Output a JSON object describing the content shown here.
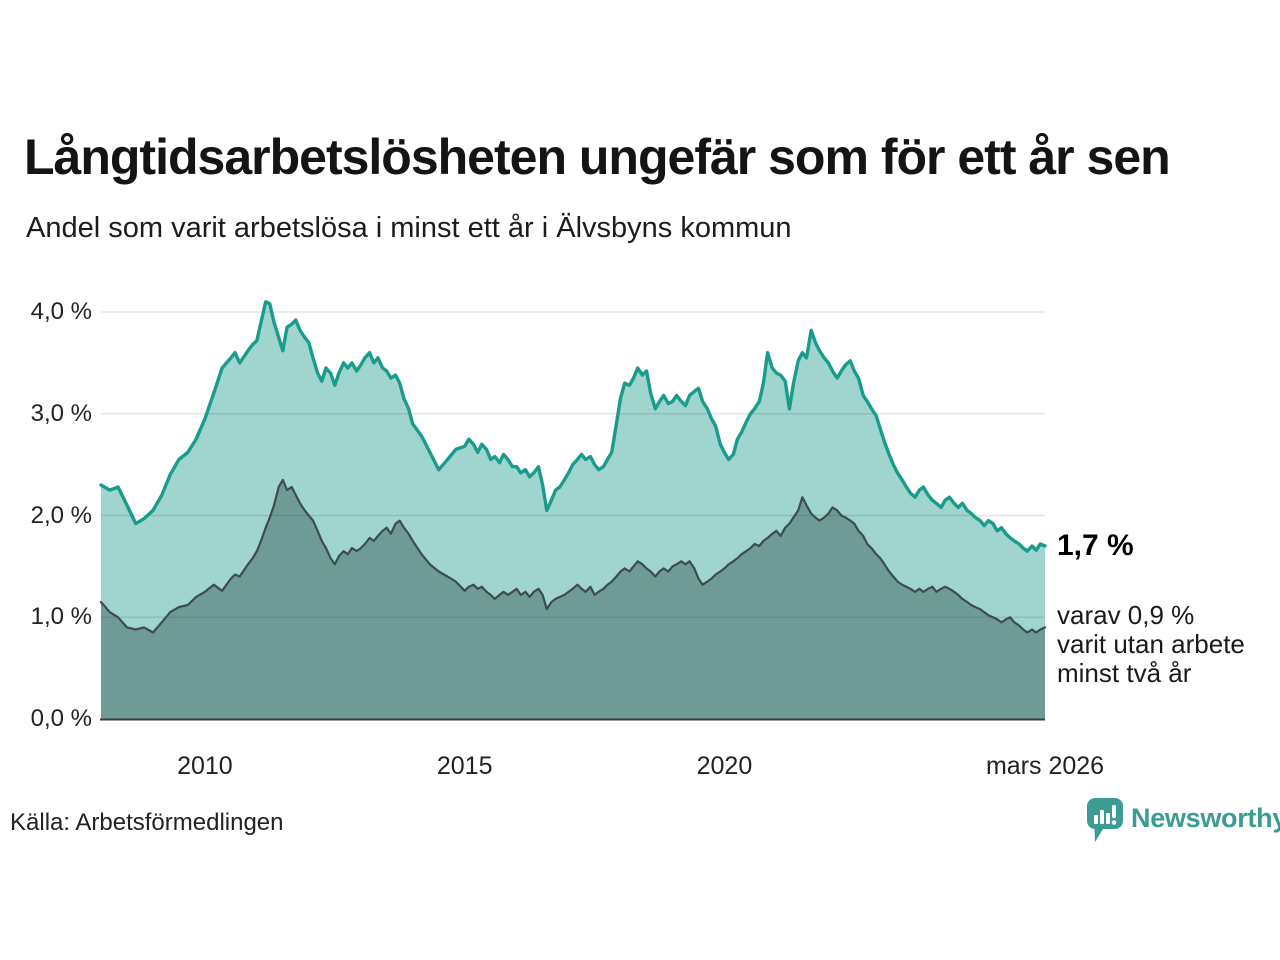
{
  "header": {
    "title": "Långtidsarbetslösheten ungefär som för ett år sen",
    "subtitle": "Andel som varit arbetslösa i minst ett år i Älvsbyns kommun"
  },
  "source": {
    "label": "Källa: Arbetsförmedlingen"
  },
  "branding": {
    "name": "Newsworthy",
    "color": "#3b9c93",
    "icon": "bar-chart-speech-bubble-icon"
  },
  "chart_data": {
    "type": "area",
    "title": "Långtidsarbetslösheten ungefär som för ett år sen",
    "subtitle": "Andel som varit arbetslösa i minst ett år i Älvsbyns kommun",
    "x_domain": [
      2008.0,
      2026.17
    ],
    "ylim": [
      0,
      4.3
    ],
    "grid": true,
    "y_ticks": [
      {
        "value": 0.0,
        "label": "0,0 %"
      },
      {
        "value": 1.0,
        "label": "1,0 %"
      },
      {
        "value": 2.0,
        "label": "2,0 %"
      },
      {
        "value": 3.0,
        "label": "3,0 %"
      },
      {
        "value": 4.0,
        "label": "4,0 %"
      }
    ],
    "x_ticks": [
      {
        "value": 2010,
        "label": "2010"
      },
      {
        "value": 2015,
        "label": "2015"
      },
      {
        "value": 2020,
        "label": "2020"
      },
      {
        "value": 2026.17,
        "label": "mars 2026"
      }
    ],
    "x": [
      2008.0,
      2008.17,
      2008.33,
      2008.5,
      2008.67,
      2008.83,
      2009.0,
      2009.17,
      2009.33,
      2009.5,
      2009.67,
      2009.83,
      2010.0,
      2010.17,
      2010.33,
      2010.5,
      2010.58,
      2010.67,
      2010.83,
      2010.92,
      2011.0,
      2011.08,
      2011.17,
      2011.25,
      2011.33,
      2011.42,
      2011.5,
      2011.58,
      2011.67,
      2011.75,
      2011.83,
      2011.92,
      2012.0,
      2012.08,
      2012.17,
      2012.25,
      2012.33,
      2012.42,
      2012.5,
      2012.58,
      2012.67,
      2012.75,
      2012.83,
      2012.92,
      2013.0,
      2013.08,
      2013.17,
      2013.25,
      2013.33,
      2013.42,
      2013.5,
      2013.58,
      2013.67,
      2013.75,
      2013.83,
      2013.92,
      2014.0,
      2014.17,
      2014.33,
      2014.5,
      2014.67,
      2014.83,
      2015.0,
      2015.08,
      2015.17,
      2015.25,
      2015.33,
      2015.42,
      2015.5,
      2015.58,
      2015.67,
      2015.75,
      2015.83,
      2015.92,
      2016.0,
      2016.08,
      2016.17,
      2016.25,
      2016.33,
      2016.42,
      2016.5,
      2016.58,
      2016.67,
      2016.75,
      2016.83,
      2016.92,
      2017.0,
      2017.08,
      2017.17,
      2017.25,
      2017.33,
      2017.42,
      2017.5,
      2017.58,
      2017.67,
      2017.75,
      2017.83,
      2017.92,
      2018.0,
      2018.08,
      2018.17,
      2018.25,
      2018.33,
      2018.42,
      2018.5,
      2018.58,
      2018.67,
      2018.75,
      2018.83,
      2018.92,
      2019.0,
      2019.08,
      2019.17,
      2019.25,
      2019.33,
      2019.42,
      2019.5,
      2019.58,
      2019.67,
      2019.75,
      2019.83,
      2019.92,
      2020.0,
      2020.08,
      2020.17,
      2020.25,
      2020.33,
      2020.42,
      2020.5,
      2020.58,
      2020.67,
      2020.75,
      2020.83,
      2020.92,
      2021.0,
      2021.08,
      2021.17,
      2021.25,
      2021.33,
      2021.42,
      2021.5,
      2021.58,
      2021.67,
      2021.75,
      2021.83,
      2021.92,
      2022.0,
      2022.08,
      2022.17,
      2022.25,
      2022.33,
      2022.42,
      2022.5,
      2022.58,
      2022.67,
      2022.75,
      2022.83,
      2022.92,
      2023.0,
      2023.08,
      2023.17,
      2023.25,
      2023.33,
      2023.42,
      2023.5,
      2023.58,
      2023.67,
      2023.75,
      2023.83,
      2023.92,
      2024.0,
      2024.08,
      2024.17,
      2024.25,
      2024.33,
      2024.42,
      2024.5,
      2024.58,
      2024.67,
      2024.75,
      2024.83,
      2024.92,
      2025.0,
      2025.08,
      2025.17,
      2025.25,
      2025.33,
      2025.42,
      2025.5,
      2025.58,
      2025.67,
      2025.75,
      2025.83,
      2025.92,
      2026.0,
      2026.08,
      2026.17
    ],
    "series": [
      {
        "name": "Arbetslösa minst ett år",
        "line_color": "#1a9c8c",
        "fill_color": "#a0d4ce",
        "line_width": 3.4,
        "values": [
          2.3,
          2.25,
          2.28,
          2.1,
          1.92,
          1.97,
          2.05,
          2.2,
          2.4,
          2.55,
          2.62,
          2.75,
          2.95,
          3.2,
          3.45,
          3.55,
          3.6,
          3.5,
          3.62,
          3.68,
          3.72,
          3.9,
          4.1,
          4.08,
          3.9,
          3.75,
          3.62,
          3.85,
          3.88,
          3.92,
          3.82,
          3.75,
          3.7,
          3.55,
          3.4,
          3.32,
          3.45,
          3.4,
          3.28,
          3.4,
          3.5,
          3.45,
          3.5,
          3.42,
          3.48,
          3.55,
          3.6,
          3.5,
          3.55,
          3.45,
          3.42,
          3.35,
          3.38,
          3.3,
          3.15,
          3.05,
          2.9,
          2.78,
          2.62,
          2.45,
          2.55,
          2.65,
          2.68,
          2.75,
          2.7,
          2.62,
          2.7,
          2.65,
          2.55,
          2.58,
          2.52,
          2.6,
          2.55,
          2.48,
          2.48,
          2.42,
          2.45,
          2.38,
          2.42,
          2.48,
          2.3,
          2.05,
          2.15,
          2.25,
          2.28,
          2.35,
          2.42,
          2.5,
          2.55,
          2.6,
          2.55,
          2.58,
          2.5,
          2.45,
          2.48,
          2.55,
          2.62,
          2.9,
          3.15,
          3.3,
          3.28,
          3.35,
          3.45,
          3.38,
          3.42,
          3.2,
          3.05,
          3.12,
          3.18,
          3.1,
          3.12,
          3.18,
          3.12,
          3.08,
          3.18,
          3.22,
          3.25,
          3.12,
          3.05,
          2.95,
          2.88,
          2.7,
          2.62,
          2.55,
          2.6,
          2.75,
          2.82,
          2.92,
          3.0,
          3.05,
          3.12,
          3.3,
          3.6,
          3.45,
          3.4,
          3.38,
          3.32,
          3.05,
          3.3,
          3.52,
          3.6,
          3.55,
          3.82,
          3.7,
          3.62,
          3.55,
          3.5,
          3.42,
          3.35,
          3.42,
          3.48,
          3.52,
          3.42,
          3.35,
          3.18,
          3.12,
          3.05,
          2.98,
          2.85,
          2.72,
          2.6,
          2.5,
          2.42,
          2.35,
          2.28,
          2.22,
          2.18,
          2.25,
          2.28,
          2.2,
          2.15,
          2.12,
          2.08,
          2.15,
          2.18,
          2.12,
          2.08,
          2.12,
          2.05,
          2.02,
          1.98,
          1.95,
          1.9,
          1.95,
          1.92,
          1.85,
          1.88,
          1.82,
          1.78,
          1.75,
          1.72,
          1.68,
          1.65,
          1.7,
          1.66,
          1.72,
          1.7
        ]
      },
      {
        "name": "Arbetslösa minst två år",
        "line_color": "#3d4c4e",
        "fill_color": "#6f9b97",
        "line_width": 2.2,
        "values": [
          1.15,
          1.05,
          1.0,
          0.9,
          0.88,
          0.9,
          0.85,
          0.95,
          1.05,
          1.1,
          1.12,
          1.2,
          1.25,
          1.32,
          1.26,
          1.38,
          1.42,
          1.4,
          1.52,
          1.58,
          1.65,
          1.75,
          1.88,
          1.98,
          2.1,
          2.28,
          2.35,
          2.25,
          2.28,
          2.2,
          2.12,
          2.05,
          2.0,
          1.95,
          1.85,
          1.75,
          1.68,
          1.58,
          1.52,
          1.6,
          1.65,
          1.62,
          1.68,
          1.65,
          1.68,
          1.72,
          1.78,
          1.75,
          1.8,
          1.85,
          1.88,
          1.82,
          1.92,
          1.95,
          1.88,
          1.82,
          1.75,
          1.62,
          1.52,
          1.45,
          1.4,
          1.35,
          1.26,
          1.3,
          1.32,
          1.28,
          1.3,
          1.25,
          1.22,
          1.18,
          1.22,
          1.25,
          1.22,
          1.25,
          1.28,
          1.22,
          1.25,
          1.2,
          1.25,
          1.28,
          1.22,
          1.08,
          1.15,
          1.18,
          1.2,
          1.22,
          1.25,
          1.28,
          1.32,
          1.28,
          1.25,
          1.3,
          1.22,
          1.25,
          1.28,
          1.32,
          1.35,
          1.4,
          1.45,
          1.48,
          1.45,
          1.5,
          1.55,
          1.52,
          1.48,
          1.45,
          1.4,
          1.45,
          1.48,
          1.45,
          1.5,
          1.52,
          1.55,
          1.52,
          1.55,
          1.48,
          1.38,
          1.32,
          1.35,
          1.38,
          1.42,
          1.45,
          1.48,
          1.52,
          1.55,
          1.58,
          1.62,
          1.65,
          1.68,
          1.72,
          1.7,
          1.75,
          1.78,
          1.82,
          1.85,
          1.8,
          1.88,
          1.92,
          1.98,
          2.05,
          2.18,
          2.1,
          2.02,
          1.98,
          1.95,
          1.98,
          2.02,
          2.08,
          2.05,
          2.0,
          1.98,
          1.95,
          1.92,
          1.85,
          1.8,
          1.72,
          1.68,
          1.62,
          1.58,
          1.52,
          1.45,
          1.4,
          1.35,
          1.32,
          1.3,
          1.28,
          1.25,
          1.28,
          1.25,
          1.28,
          1.3,
          1.25,
          1.28,
          1.3,
          1.28,
          1.25,
          1.22,
          1.18,
          1.15,
          1.12,
          1.1,
          1.08,
          1.05,
          1.02,
          1.0,
          0.98,
          0.95,
          0.98,
          1.0,
          0.95,
          0.92,
          0.88,
          0.85,
          0.88,
          0.85,
          0.88,
          0.9
        ]
      }
    ],
    "annotations": {
      "latest_total": "1,7 %",
      "secondary": [
        "varav 0,9 %",
        "varit utan arbete",
        "minst två år"
      ]
    }
  }
}
